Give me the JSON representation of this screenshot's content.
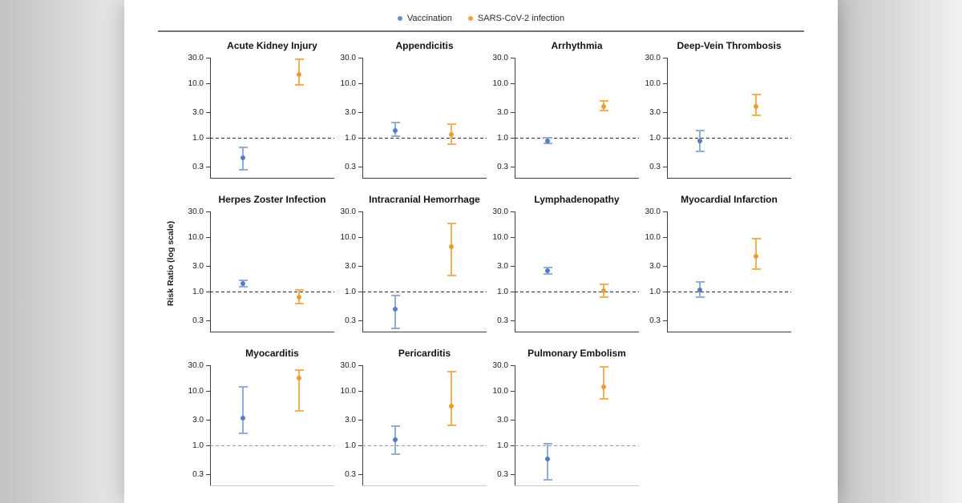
{
  "chart_data": {
    "type": "scatter",
    "scale": "log",
    "title": "",
    "ylabel": "Risk Ratio (log scale)",
    "yticks": [
      30.0,
      10.0,
      3.0,
      1.0,
      0.3
    ],
    "ytick_labels": [
      "30.0",
      "10.0",
      "3.0",
      "1.0",
      "0.3"
    ],
    "ylim": [
      0.19,
      30
    ],
    "reference_line": 1.0,
    "grid": false,
    "legend_position": "top-center",
    "legend": [
      {
        "name": "Vaccination",
        "color": "#6d8ec6",
        "point_color": "#527ec0",
        "bar_color": "#92add8"
      },
      {
        "name": "SARS-CoV-2 infection",
        "color": "#f0a23c",
        "point_color": "#ec9c2d",
        "bar_color": "#f2b155"
      }
    ],
    "panels": [
      {
        "title": "Acute Kidney Injury",
        "vaccination": {
          "rr": 0.43,
          "ci": [
            0.25,
            0.7
          ]
        },
        "infection": {
          "rr": 14.8,
          "ci": [
            9.2,
            28.8
          ]
        }
      },
      {
        "title": "Appendicitis",
        "vaccination": {
          "rr": 1.4,
          "ci": [
            1.05,
            2.01
          ]
        },
        "infection": {
          "rr": 1.15,
          "ci": [
            0.76,
            1.87
          ]
        }
      },
      {
        "title": "Arrhythmia",
        "vaccination": {
          "rr": 0.9,
          "ci": [
            0.76,
            1.06
          ]
        },
        "infection": {
          "rr": 3.83,
          "ci": [
            3.05,
            4.95
          ]
        }
      },
      {
        "title": "Deep-Vein Thrombosis",
        "vaccination": {
          "rr": 0.9,
          "ci": [
            0.55,
            1.42
          ]
        },
        "infection": {
          "rr": 3.78,
          "ci": [
            2.56,
            6.55
          ]
        }
      },
      {
        "title": "Herpes Zoster Infection",
        "vaccination": {
          "rr": 1.43,
          "ci": [
            1.22,
            1.7
          ]
        },
        "infection": {
          "rr": 0.81,
          "ci": [
            0.59,
            1.11
          ]
        }
      },
      {
        "title": "Intracranial Hemorrhage",
        "vaccination": {
          "rr": 0.48,
          "ci": [
            0.21,
            0.9
          ]
        },
        "infection": {
          "rr": 6.8,
          "ci": [
            1.95,
            18.9
          ]
        }
      },
      {
        "title": "Lymphadenopathy",
        "vaccination": {
          "rr": 2.43,
          "ci": [
            2.1,
            2.9
          ]
        },
        "infection": {
          "rr": 1.04,
          "ci": [
            0.78,
            1.42
          ]
        }
      },
      {
        "title": "Myocardial Infarction",
        "vaccination": {
          "rr": 1.07,
          "ci": [
            0.76,
            1.57
          ]
        },
        "infection": {
          "rr": 4.47,
          "ci": [
            2.56,
            9.95
          ]
        }
      },
      {
        "title": "Myocarditis",
        "vaccination": {
          "rr": 3.24,
          "ci": [
            1.6,
            12.3
          ]
        },
        "infection": {
          "rr": 17.5,
          "ci": [
            4.2,
            25.6
          ]
        }
      },
      {
        "title": "Pericarditis",
        "vaccination": {
          "rr": 1.28,
          "ci": [
            0.68,
            2.4
          ]
        },
        "infection": {
          "rr": 5.35,
          "ci": [
            2.3,
            23.9
          ]
        }
      },
      {
        "title": "Pulmonary Embolism",
        "vaccination": {
          "rr": 0.57,
          "ci": [
            0.23,
            1.12
          ]
        },
        "infection": {
          "rr": 12.1,
          "ci": [
            7.0,
            28.8
          ]
        }
      }
    ]
  },
  "colors": {
    "reference_dash": "#2f2f2f",
    "reference_dash_bottom_row": "#9b9b9b",
    "axis": "#3f3f3f",
    "separator": "#70707a",
    "card_background": "#ffffff",
    "page_background": "#dddddd"
  }
}
